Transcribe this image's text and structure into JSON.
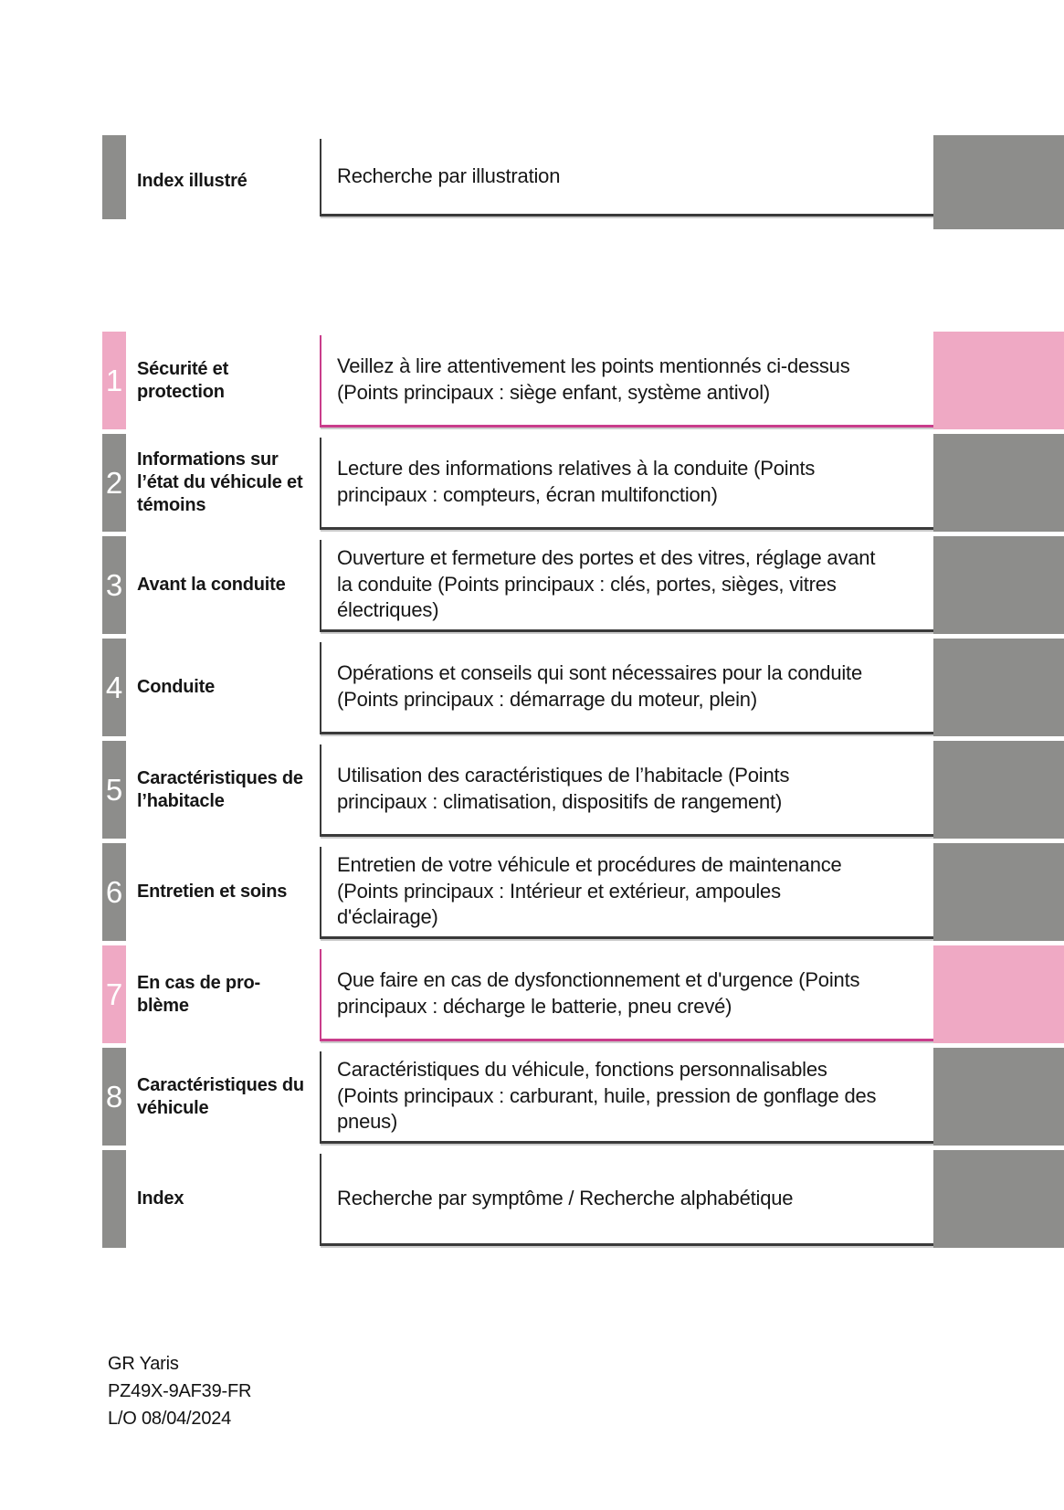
{
  "accent_colors": {
    "pink_block": "#efa9c4",
    "pink_rule": "#c93d8b",
    "gray_block": "#8d8d8b",
    "dark_rule": "#3a3a3a"
  },
  "rows": [
    {
      "number": "",
      "title": "Index illustré",
      "description": "Recherche par illustration"
    },
    {
      "number": "1",
      "title": "Sécurité et protection",
      "description": "Veillez à lire attentivement les points mentionnés ci-dessus (Points principaux : siège enfant, système antivol)"
    },
    {
      "number": "2",
      "title": "Informations sur l’état du véhicule et témoins",
      "description": "Lecture des informations relatives à la conduite (Points principaux : compteurs, écran multifonction)"
    },
    {
      "number": "3",
      "title": "Avant la conduite",
      "description": "Ouverture et fermeture des portes et des vitres, réglage avant la conduite (Points principaux : clés, portes, sièges, vitres électriques)"
    },
    {
      "number": "4",
      "title": "Conduite",
      "description": "Opérations et conseils qui sont nécessaires pour la conduite (Points principaux : démarrage du moteur, plein)"
    },
    {
      "number": "5",
      "title": "Caractéristiques de l’habitacle",
      "description": "Utilisation des caractéristiques de l’habitacle (Points principaux : climatisation, dispositifs de rangement)"
    },
    {
      "number": "6",
      "title": "Entretien et soins",
      "description": "Entretien de votre véhicule et procédures de maintenance (Points principaux : Intérieur et extérieur, ampoules d'éclairage)"
    },
    {
      "number": "7",
      "title": "En cas de pro-\nblème",
      "description": "Que faire en cas de dysfonctionnement et d'urgence (Points principaux : décharge le batterie, pneu crevé)"
    },
    {
      "number": "8",
      "title": "Caractéristiques du véhicule",
      "description": "Caractéristiques du véhicule, fonctions personnalisables (Points principaux : carburant, huile, pression de gonflage des pneus)"
    },
    {
      "number": "",
      "title": "Index",
      "description": "Recherche par symptôme / Recherche alphabétique"
    }
  ],
  "footer": {
    "model": "GR Yaris",
    "part_number": "PZ49X-9AF39-FR",
    "layout_date": "L/O 08/04/2024"
  }
}
